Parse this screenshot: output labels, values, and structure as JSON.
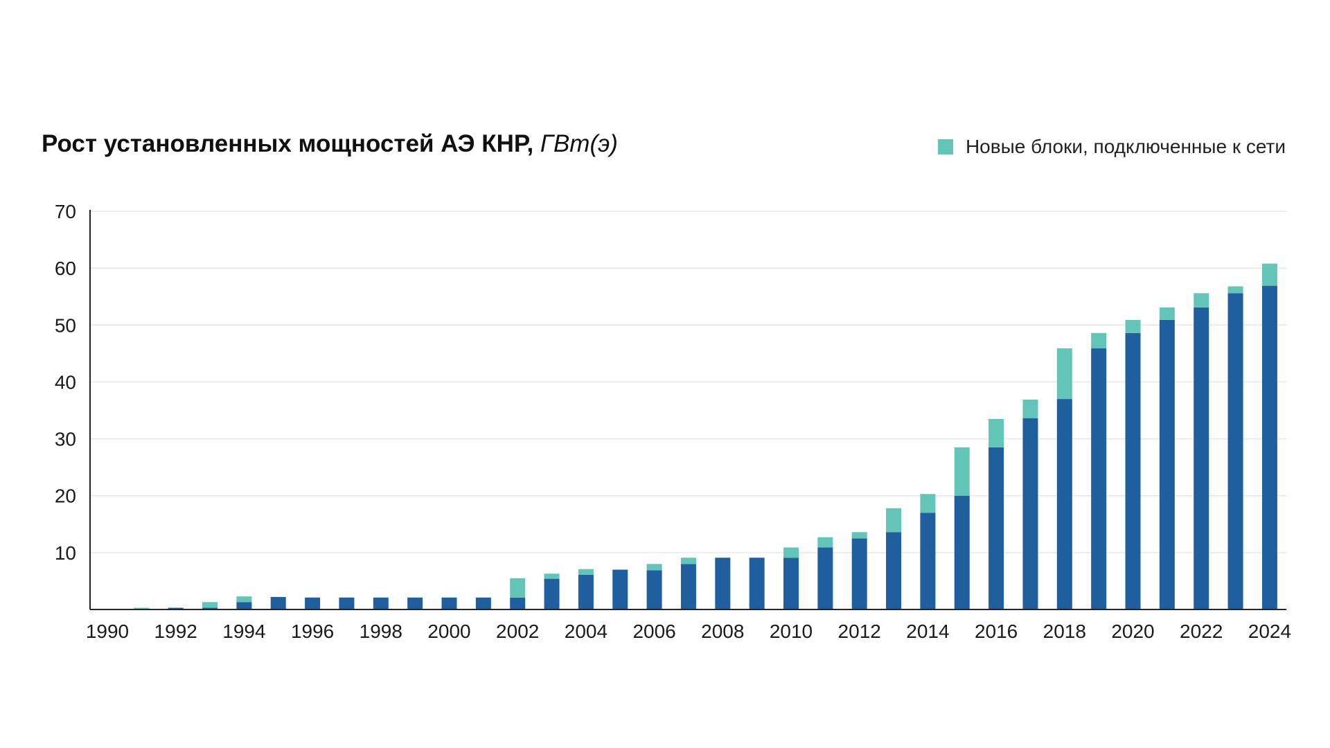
{
  "colors": {
    "existing": "#1f5f9e",
    "new": "#63c5b8",
    "grid": "#e6e6e6",
    "axis": "#222222"
  },
  "chart_data": {
    "type": "bar",
    "stacked": true,
    "title": "Рост установленных мощностей АЭ КНР,",
    "title_unit": "ГВт(э)",
    "legend": {
      "label": "Новые блоки, подключенные к сети",
      "placement": "top-right"
    },
    "grid": true,
    "ylim": [
      0,
      70
    ],
    "y_ticks": [
      10,
      20,
      30,
      40,
      50,
      60,
      70
    ],
    "y_tick_labels": [
      "10",
      "20",
      "30",
      "40",
      "50",
      "60",
      "70"
    ],
    "x_tick_labels": [
      "1990",
      "1992",
      "1994",
      "1996",
      "1998",
      "2000",
      "2002",
      "2004",
      "2006",
      "2008",
      "2010",
      "2012",
      "2014",
      "2016",
      "2018",
      "2020",
      "2022",
      "2024"
    ],
    "categories": [
      1990,
      1991,
      1992,
      1993,
      1994,
      1995,
      1996,
      1997,
      1998,
      1999,
      2000,
      2001,
      2002,
      2003,
      2004,
      2005,
      2006,
      2007,
      2008,
      2009,
      2010,
      2011,
      2012,
      2013,
      2014,
      2015,
      2016,
      2017,
      2018,
      2019,
      2020,
      2021,
      2022,
      2023,
      2024
    ],
    "series": [
      {
        "role": "existing",
        "values": [
          0,
          0,
          0.3,
          0.3,
          1.3,
          2.2,
          2.1,
          2.1,
          2.1,
          2.1,
          2.1,
          2.1,
          2.1,
          5.4,
          6.1,
          7.0,
          6.9,
          8.0,
          9.1,
          9.1,
          9.1,
          10.9,
          12.5,
          13.6,
          17.0,
          20.0,
          28.5,
          33.6,
          37.0,
          45.9,
          48.6,
          50.9,
          53.1,
          55.6,
          56.9
        ]
      },
      {
        "role": "new",
        "name": "Новые блоки, подключенные к сети",
        "values": [
          0,
          0.3,
          0,
          1.0,
          1.0,
          0,
          0,
          0,
          0,
          0,
          0,
          0,
          3.4,
          0.9,
          1.0,
          0,
          1.1,
          1.1,
          0,
          0,
          1.8,
          1.8,
          1.1,
          4.2,
          3.3,
          8.5,
          5.0,
          3.3,
          8.9,
          2.7,
          2.3,
          2.2,
          2.5,
          1.2,
          3.9
        ]
      }
    ]
  }
}
